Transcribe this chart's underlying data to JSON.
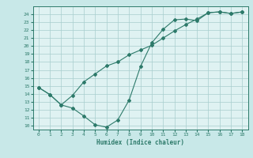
{
  "xlabel": "Humidex (Indice chaleur)",
  "line1_x": [
    0,
    1,
    2,
    3,
    4,
    5,
    6,
    7,
    8,
    9,
    10,
    11,
    12,
    13,
    14,
    15,
    16,
    17,
    18
  ],
  "line1_y": [
    14.8,
    13.9,
    12.6,
    12.2,
    11.2,
    10.1,
    9.8,
    10.7,
    13.2,
    17.4,
    20.4,
    22.1,
    23.3,
    23.4,
    23.2,
    24.2,
    24.3,
    24.1,
    24.3
  ],
  "line2_x": [
    0,
    1,
    2,
    3,
    4,
    5,
    6,
    7,
    8,
    9,
    10,
    11,
    12,
    13,
    14,
    15,
    16,
    17,
    18
  ],
  "line2_y": [
    14.8,
    13.9,
    12.6,
    13.8,
    15.5,
    16.5,
    17.5,
    18.0,
    18.9,
    19.5,
    20.1,
    21.0,
    21.9,
    22.7,
    23.4,
    24.2,
    24.3,
    24.1,
    24.3
  ],
  "line_color": "#2d7a6a",
  "bg_color": "#c8e8e8",
  "plot_bg_color": "#dff2f2",
  "grid_color": "#a8cece",
  "ylim": [
    9.5,
    25.0
  ],
  "xlim": [
    -0.5,
    18.5
  ],
  "yticks": [
    10,
    11,
    12,
    13,
    14,
    15,
    16,
    17,
    18,
    19,
    20,
    21,
    22,
    23,
    24
  ],
  "xticks": [
    0,
    1,
    2,
    3,
    4,
    5,
    6,
    7,
    8,
    9,
    10,
    11,
    12,
    13,
    14,
    15,
    16,
    17,
    18
  ],
  "marker": "D",
  "marker_size": 2.0,
  "line_width": 0.8
}
